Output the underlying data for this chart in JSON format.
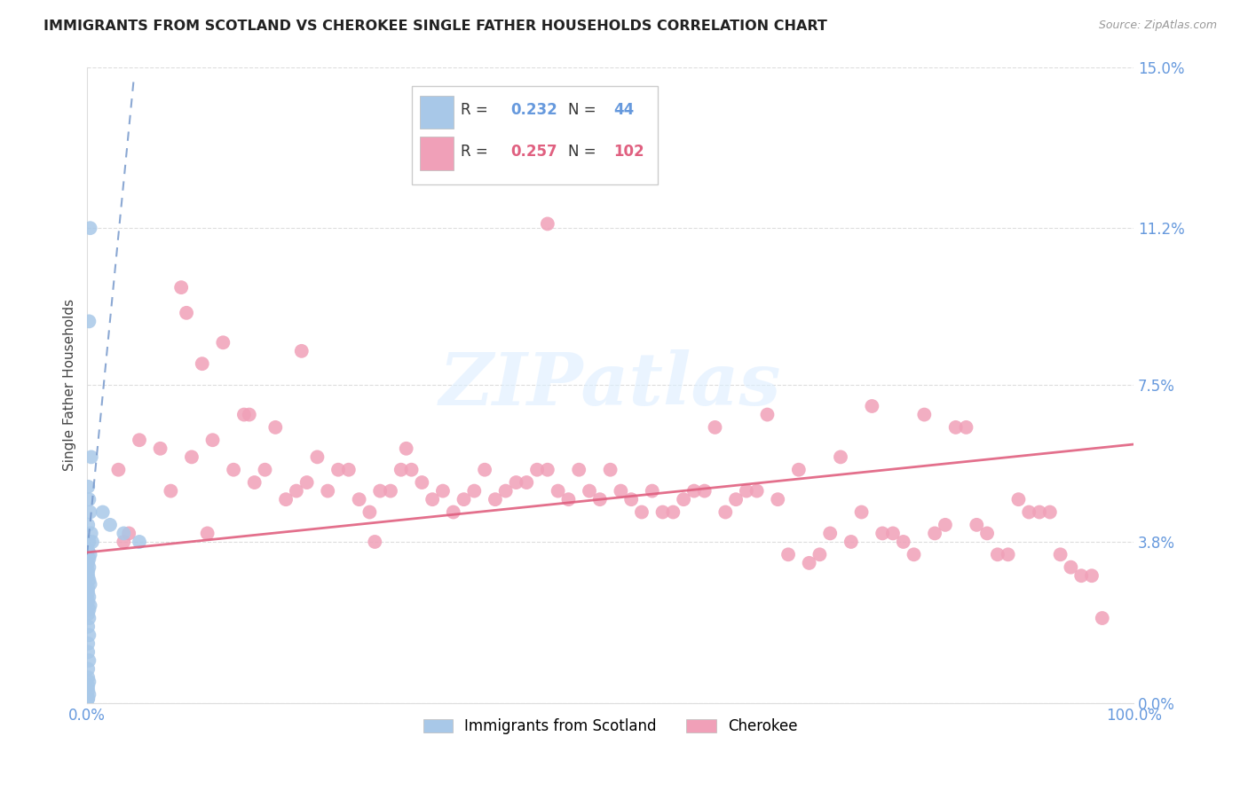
{
  "title": "IMMIGRANTS FROM SCOTLAND VS CHEROKEE SINGLE FATHER HOUSEHOLDS CORRELATION CHART",
  "source": "Source: ZipAtlas.com",
  "ylabel": "Single Father Households",
  "ytick_values": [
    0.0,
    3.8,
    7.5,
    11.2,
    15.0
  ],
  "ytick_labels": [
    "0.0%",
    "3.8%",
    "7.5%",
    "11.2%",
    "15.0%"
  ],
  "xlim": [
    0.0,
    100.0
  ],
  "ylim": [
    0.0,
    15.0
  ],
  "blue_color": "#a8c8e8",
  "pink_color": "#f0a0b8",
  "blue_line_color": "#7799cc",
  "pink_line_color": "#e06080",
  "tick_color": "#6699dd",
  "grid_color": "#dddddd",
  "watermark_color": "#ddeeff",
  "scotland_x": [
    0.3,
    0.2,
    0.4,
    0.1,
    0.2,
    0.3,
    0.1,
    0.4,
    0.5,
    0.2,
    0.1,
    0.3,
    0.2,
    0.1,
    0.2,
    0.1,
    0.1,
    0.2,
    0.3,
    0.1,
    0.1,
    0.2,
    0.1,
    0.3,
    0.2,
    0.1,
    0.2,
    0.1,
    0.2,
    0.1,
    0.1,
    0.2,
    0.1,
    0.1,
    0.2,
    0.1,
    0.1,
    0.2,
    0.1,
    0.1,
    1.5,
    2.2,
    3.5,
    5.0
  ],
  "scotland_y": [
    11.2,
    9.0,
    5.8,
    5.1,
    4.8,
    4.5,
    4.2,
    4.0,
    3.8,
    3.8,
    3.6,
    3.5,
    3.4,
    3.3,
    3.2,
    3.1,
    3.0,
    2.9,
    2.8,
    2.7,
    2.6,
    2.5,
    2.4,
    2.3,
    2.2,
    2.1,
    2.0,
    1.8,
    1.6,
    1.4,
    1.2,
    1.0,
    0.8,
    0.6,
    0.5,
    0.4,
    0.3,
    0.2,
    0.1,
    0.1,
    4.5,
    4.2,
    4.0,
    3.8
  ],
  "cherokee_x": [
    3.0,
    7.0,
    10.0,
    12.0,
    14.0,
    16.0,
    18.0,
    20.0,
    22.0,
    24.0,
    26.0,
    28.0,
    30.0,
    32.0,
    34.0,
    36.0,
    38.0,
    40.0,
    42.0,
    44.0,
    46.0,
    48.0,
    50.0,
    52.0,
    54.0,
    56.0,
    58.0,
    60.0,
    62.0,
    64.0,
    66.0,
    68.0,
    70.0,
    72.0,
    74.0,
    76.0,
    78.0,
    80.0,
    82.0,
    84.0,
    86.0,
    88.0,
    90.0,
    92.0,
    94.0,
    96.0,
    4.0,
    8.0,
    11.0,
    15.0,
    17.0,
    19.0,
    21.0,
    23.0,
    25.0,
    27.0,
    29.0,
    31.0,
    33.0,
    35.0,
    37.0,
    39.0,
    41.0,
    43.0,
    45.0,
    47.0,
    49.0,
    51.0,
    53.0,
    55.0,
    57.0,
    59.0,
    61.0,
    63.0,
    65.0,
    67.0,
    69.0,
    71.0,
    73.0,
    75.0,
    77.0,
    79.0,
    81.0,
    83.0,
    85.0,
    87.0,
    89.0,
    91.0,
    93.0,
    95.0,
    97.0,
    5.0,
    9.0,
    13.0,
    44.0,
    20.5,
    30.5,
    9.5,
    15.5,
    3.5,
    11.5,
    27.5
  ],
  "cherokee_y": [
    5.5,
    6.0,
    5.8,
    6.2,
    5.5,
    5.2,
    6.5,
    5.0,
    5.8,
    5.5,
    4.8,
    5.0,
    5.5,
    5.2,
    5.0,
    4.8,
    5.5,
    5.0,
    5.2,
    5.5,
    4.8,
    5.0,
    5.5,
    4.8,
    5.0,
    4.5,
    5.0,
    6.5,
    4.8,
    5.0,
    4.8,
    5.5,
    3.5,
    5.8,
    4.5,
    4.0,
    3.8,
    6.8,
    4.2,
    6.5,
    4.0,
    3.5,
    4.5,
    4.5,
    3.2,
    3.0,
    4.0,
    5.0,
    8.0,
    6.8,
    5.5,
    4.8,
    5.2,
    5.0,
    5.5,
    4.5,
    5.0,
    5.5,
    4.8,
    4.5,
    5.0,
    4.8,
    5.2,
    5.5,
    5.0,
    5.5,
    4.8,
    5.0,
    4.5,
    4.5,
    4.8,
    5.0,
    4.5,
    5.0,
    6.8,
    3.5,
    3.3,
    4.0,
    3.8,
    7.0,
    4.0,
    3.5,
    4.0,
    6.5,
    4.2,
    3.5,
    4.8,
    4.5,
    3.5,
    3.0,
    2.0,
    6.2,
    9.8,
    8.5,
    11.3,
    8.3,
    6.0,
    9.2,
    6.8,
    3.8,
    4.0,
    3.8
  ],
  "scot_line_x0": 0.0,
  "scot_line_y0": 3.5,
  "scot_line_x1": 4.5,
  "scot_line_y1": 14.8,
  "cher_line_x0": 0.0,
  "cher_line_y0": 3.55,
  "cher_line_x1": 100.0,
  "cher_line_y1": 6.1
}
